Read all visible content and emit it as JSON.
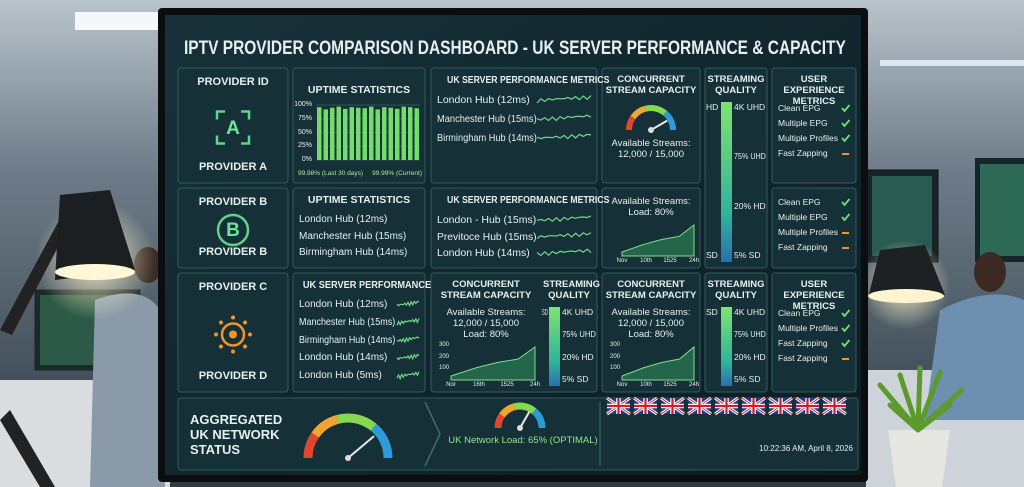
{
  "header": {
    "title": "IPTV PROVIDER COMPARISON DASHBOARD - UK SERVER PERFORMANCE & CAPACITY"
  },
  "providers": [
    {
      "heading": "PROVIDER ID",
      "badge": "A",
      "name": "PROVIDER A"
    },
    {
      "heading": "PROVIDER B",
      "badge": "B",
      "name": "PROVIDER B"
    },
    {
      "heading": "PROVIDER C",
      "name": "PROVIDER D"
    }
  ],
  "uptime": {
    "title": "UPTIME STATISTICS",
    "ylim": [
      0,
      100
    ],
    "yticks": [
      {
        "value": 100,
        "label": "100%"
      },
      {
        "value": 75,
        "label": "75%"
      },
      {
        "value": 50,
        "label": "50%"
      },
      {
        "value": 25,
        "label": "25%"
      },
      {
        "value": 0,
        "label": "0%"
      }
    ],
    "values": [
      96,
      92,
      95,
      97,
      93,
      96,
      95,
      94,
      97,
      92,
      96,
      95,
      93,
      97,
      96,
      94
    ],
    "notes": [
      "99.98% (Last 30 days)",
      "99.99% (Current)"
    ]
  },
  "panels": [
    {
      "title": "UK SERVER PERFORMANCE METRICS",
      "lines": [
        "London Hub (12ms)",
        "Manchester Hub (15ms)",
        "Birmingham Hub (14ms)"
      ]
    },
    {
      "title": "CONCURRENT STREAM CAPACITY",
      "lines": [
        "Available Streams:",
        "12,000 / 15,000"
      ]
    },
    {
      "title": "STREAMING QUALITY",
      "labels": [
        "4K UHD",
        "75% UHD",
        "HD",
        "20% HD",
        "SD",
        "5% SD"
      ]
    },
    {
      "title": "USER EXPERIENCE METRICS",
      "lines": [
        "Clean EPG",
        "Multiple EPG",
        "Multiple Profiles",
        "Fast Zapping"
      ],
      "status": [
        "ok",
        "ok",
        "ok",
        "warn"
      ]
    },
    {
      "title": "UPTIME STATISTICS",
      "lines": [
        "London Hub (12ms)",
        "Manchester Hub (15ms)",
        "Birmingham Hub (14ms)"
      ]
    },
    {
      "title": "UK SERVER PERFORMANCE METRICS",
      "lines": [
        "London - Hub (15ms)",
        "Previtoce Hub (15ms)",
        "London Hub (14ms)"
      ]
    },
    {
      "lines": [
        "Available Streams:",
        "Load: 80%"
      ],
      "axis": {
        "x": [
          "Nov",
          "10th",
          "1525",
          "24h"
        ]
      }
    },
    {
      "lines": [
        "Clean EPG",
        "Multiple EPG",
        "Multiple Profiles",
        "Fast Zapping"
      ],
      "status": [
        "ok",
        "ok",
        "warn",
        "warn"
      ]
    },
    {
      "title": "UK SERVER PERFORMANCE",
      "lines": [
        "London Hub (12ms)",
        "Manchester Hub (15ms)",
        "Birmingham Hub (14ms)",
        "London Hub (14ms)",
        "London Hub (5ms)"
      ]
    },
    {
      "title": "CONCURRENT STREAM CAPACITY",
      "lines": [
        "Available Streams:",
        "12,000 / 15,000",
        "Load: 80%"
      ],
      "axis": {
        "y": [
          "300",
          "200",
          "100"
        ],
        "x": [
          "Nor",
          "16th",
          "1525",
          "24h"
        ]
      }
    },
    {
      "title": "STREAMING QUALITY",
      "labels": [
        "4K UHD",
        "75% UHD",
        "20% HD",
        "SD",
        "5% SD"
      ]
    },
    {
      "title": "CONCURRENT STREAM CAPACITY",
      "lines": [
        "Available Streams:",
        "12,000 / 15,000",
        "Load: 80%"
      ],
      "axis": {
        "y": [
          "300",
          "200",
          "100"
        ],
        "x": [
          "Nov",
          "10th",
          "1525",
          "24h"
        ]
      }
    },
    {
      "title": "STREAMING QUALITY",
      "labels": [
        "4K UHD",
        "75% UHD",
        "20% HD",
        "SD",
        "5% SD"
      ]
    },
    {
      "title": "USER EXPERIENCE METRICS",
      "lines": [
        "Clean EPG",
        "Multiple Profiles",
        "Fast Zapping",
        "Fast Zapping"
      ],
      "status": [
        "ok",
        "ok",
        "ok",
        "warn"
      ]
    }
  ],
  "status": {
    "title": "AGGREGATED UK NETWORK STATUS",
    "load": "UK Network Load: 65% (OPTIMAL)",
    "timestamp": "10:22:36 AM, April 8, 2026"
  }
}
